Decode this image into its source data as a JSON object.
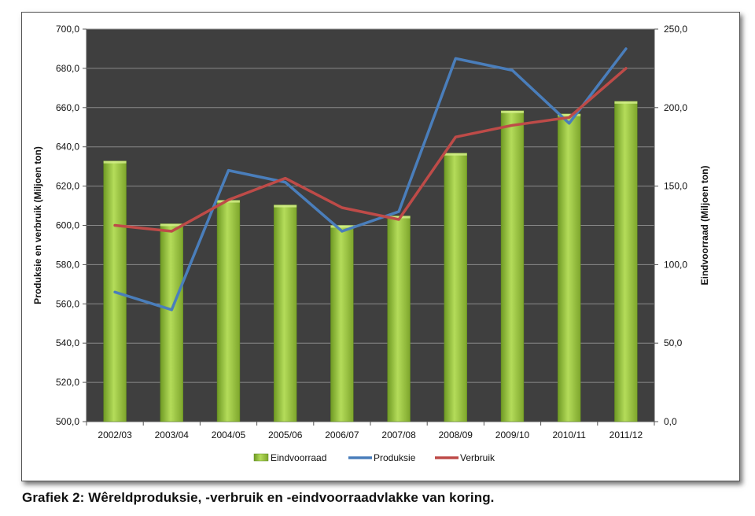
{
  "caption": "Grafiek 2: Wêreldproduksie, -verbruik en -eindvoorraadvlakke van koring.",
  "chart_data": {
    "type": "bar",
    "categories": [
      "2002/03",
      "2003/04",
      "2004/05",
      "2005/06",
      "2006/07",
      "2007/08",
      "2008/09",
      "2009/10",
      "2010/11",
      "2011/12"
    ],
    "series": [
      {
        "name": "Eindvoorraad",
        "type": "bar",
        "axis": "right",
        "color": "#9ccb3b",
        "values": [
          166,
          126,
          141,
          138,
          125,
          131,
          171,
          198,
          196,
          204
        ]
      },
      {
        "name": "Produksie",
        "type": "line",
        "axis": "left",
        "color": "#4a7ebb",
        "values": [
          566,
          557,
          628,
          622,
          597,
          607,
          685,
          679,
          652,
          690
        ]
      },
      {
        "name": "Verbruik",
        "type": "line",
        "axis": "left",
        "color": "#be4b48",
        "values": [
          600,
          597,
          613,
          624,
          609,
          603,
          645,
          651,
          655,
          680
        ]
      }
    ],
    "ylabel": "Produksie en verbruik (Miljoen ton)",
    "ylabel_right": "Eindvoorraad (Miljoen ton)",
    "ylim": [
      500,
      700
    ],
    "ylim_right": [
      0,
      250
    ],
    "yticks": [
      "500,0",
      "520,0",
      "540,0",
      "560,0",
      "580,0",
      "600,0",
      "620,0",
      "640,0",
      "660,0",
      "680,0",
      "700,0"
    ],
    "yticks_right": [
      "0,0",
      "50,0",
      "100,0",
      "150,0",
      "200,0",
      "250,0"
    ],
    "grid": true,
    "legend_position": "bottom",
    "plot_background": "#3f3f3f"
  }
}
